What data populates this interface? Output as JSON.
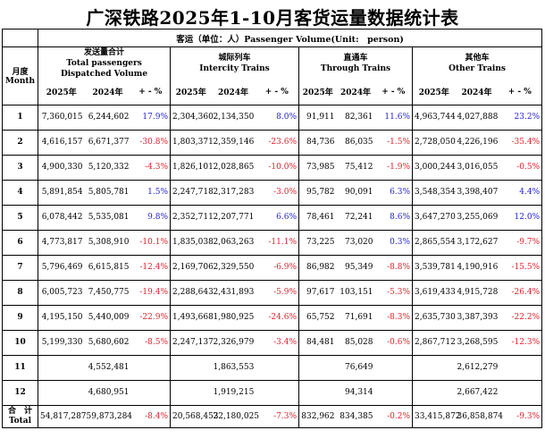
{
  "title": "广深铁路2025年1-10月客货运量数据统计表",
  "caption": "客运（单位：人）Passenger Volume(Unit:　person)",
  "month_header": {
    "zh": "月度",
    "en": "Month"
  },
  "groups": [
    {
      "zh": "发送量合计",
      "en": "Total passengers Dispatched Volume"
    },
    {
      "zh": "城际列车",
      "en": "Intercity Trains"
    },
    {
      "zh": "直通车",
      "en": "Through Trains"
    },
    {
      "zh": "其他车",
      "en": "Other Trains"
    }
  ],
  "sub_headers": {
    "y2025": "2025年",
    "y2024": "2024年",
    "chg": "+ - %"
  },
  "rows": [
    {
      "month": "1",
      "total": [
        "7,360,015",
        "6,244,602",
        "17.9%"
      ],
      "intercity": [
        "2,304,360",
        "2,134,350",
        "8.0%"
      ],
      "through": [
        "91,911",
        "82,361",
        "11.6%"
      ],
      "other": [
        "4,963,744",
        "4,027,888",
        "23.2%"
      ]
    },
    {
      "month": "2",
      "total": [
        "4,616,157",
        "6,671,377",
        "-30.8%"
      ],
      "intercity": [
        "1,803,371",
        "2,359,146",
        "-23.6%"
      ],
      "through": [
        "84,736",
        "86,035",
        "-1.5%"
      ],
      "other": [
        "2,728,050",
        "4,226,196",
        "-35.4%"
      ]
    },
    {
      "month": "3",
      "total": [
        "4,900,330",
        "5,120,332",
        "-4.3%"
      ],
      "intercity": [
        "1,826,101",
        "2,028,865",
        "-10.0%"
      ],
      "through": [
        "73,985",
        "75,412",
        "-1.9%"
      ],
      "other": [
        "3,000,244",
        "3,016,055",
        "-0.5%"
      ]
    },
    {
      "month": "4",
      "total": [
        "5,891,854",
        "5,805,781",
        "1.5%"
      ],
      "intercity": [
        "2,247,718",
        "2,317,283",
        "-3.0%"
      ],
      "through": [
        "95,782",
        "90,091",
        "6.3%"
      ],
      "other": [
        "3,548,354",
        "3,398,407",
        "4.4%"
      ]
    },
    {
      "month": "5",
      "total": [
        "6,078,442",
        "5,535,081",
        "9.8%"
      ],
      "intercity": [
        "2,352,711",
        "2,207,771",
        "6.6%"
      ],
      "through": [
        "78,461",
        "72,241",
        "8.6%"
      ],
      "other": [
        "3,647,270",
        "3,255,069",
        "12.0%"
      ]
    },
    {
      "month": "6",
      "total": [
        "4,773,817",
        "5,308,910",
        "-10.1%"
      ],
      "intercity": [
        "1,835,038",
        "2,063,263",
        "-11.1%"
      ],
      "through": [
        "73,225",
        "73,020",
        "0.3%"
      ],
      "other": [
        "2,865,554",
        "3,172,627",
        "-9.7%"
      ]
    },
    {
      "month": "7",
      "total": [
        "5,796,469",
        "6,615,815",
        "-12.4%"
      ],
      "intercity": [
        "2,169,706",
        "2,329,550",
        "-6.9%"
      ],
      "through": [
        "86,982",
        "95,349",
        "-8.8%"
      ],
      "other": [
        "3,539,781",
        "4,190,916",
        "-15.5%"
      ]
    },
    {
      "month": "8",
      "total": [
        "6,005,723",
        "7,450,775",
        "-19.4%"
      ],
      "intercity": [
        "2,288,643",
        "2,431,893",
        "-5.9%"
      ],
      "through": [
        "97,617",
        "103,151",
        "-5.3%"
      ],
      "other": [
        "3,619,433",
        "4,915,728",
        "-26.4%"
      ]
    },
    {
      "month": "9",
      "total": [
        "4,195,150",
        "5,440,009",
        "-22.9%"
      ],
      "intercity": [
        "1,493,668",
        "1,980,925",
        "-24.6%"
      ],
      "through": [
        "65,752",
        "71,691",
        "-8.3%"
      ],
      "other": [
        "2,635,730",
        "3,387,393",
        "-22.2%"
      ]
    },
    {
      "month": "10",
      "total": [
        "5,199,330",
        "5,680,602",
        "-8.5%"
      ],
      "intercity": [
        "2,247,137",
        "2,326,979",
        "-3.4%"
      ],
      "through": [
        "84,481",
        "85,028",
        "-0.6%"
      ],
      "other": [
        "2,867,712",
        "3,268,595",
        "-12.3%"
      ]
    },
    {
      "month": "11",
      "total": [
        "",
        "4,552,481",
        ""
      ],
      "intercity": [
        "",
        "1,863,553",
        ""
      ],
      "through": [
        "",
        "76,649",
        ""
      ],
      "other": [
        "",
        "2,612,279",
        ""
      ]
    },
    {
      "month": "12",
      "total": [
        "",
        "4,680,951",
        ""
      ],
      "intercity": [
        "",
        "1,919,215",
        ""
      ],
      "through": [
        "",
        "94,314",
        ""
      ],
      "other": [
        "",
        "2,667,422",
        ""
      ]
    }
  ],
  "total_row": {
    "label_zh": "合　计",
    "label_en": "Total",
    "total": [
      "54,817,287",
      "59,873,284",
      "-8.4%"
    ],
    "intercity": [
      "20,568,453",
      "22,180,025",
      "-7.3%"
    ],
    "through": [
      "832,962",
      "834,385",
      "-0.2%"
    ],
    "other": [
      "33,415,872",
      "36,858,874",
      "-9.3%"
    ]
  },
  "colors": {
    "positive_change": "#1f1fd6",
    "negative_change": "#e0202a",
    "text": "#000000",
    "border": "#000000"
  }
}
